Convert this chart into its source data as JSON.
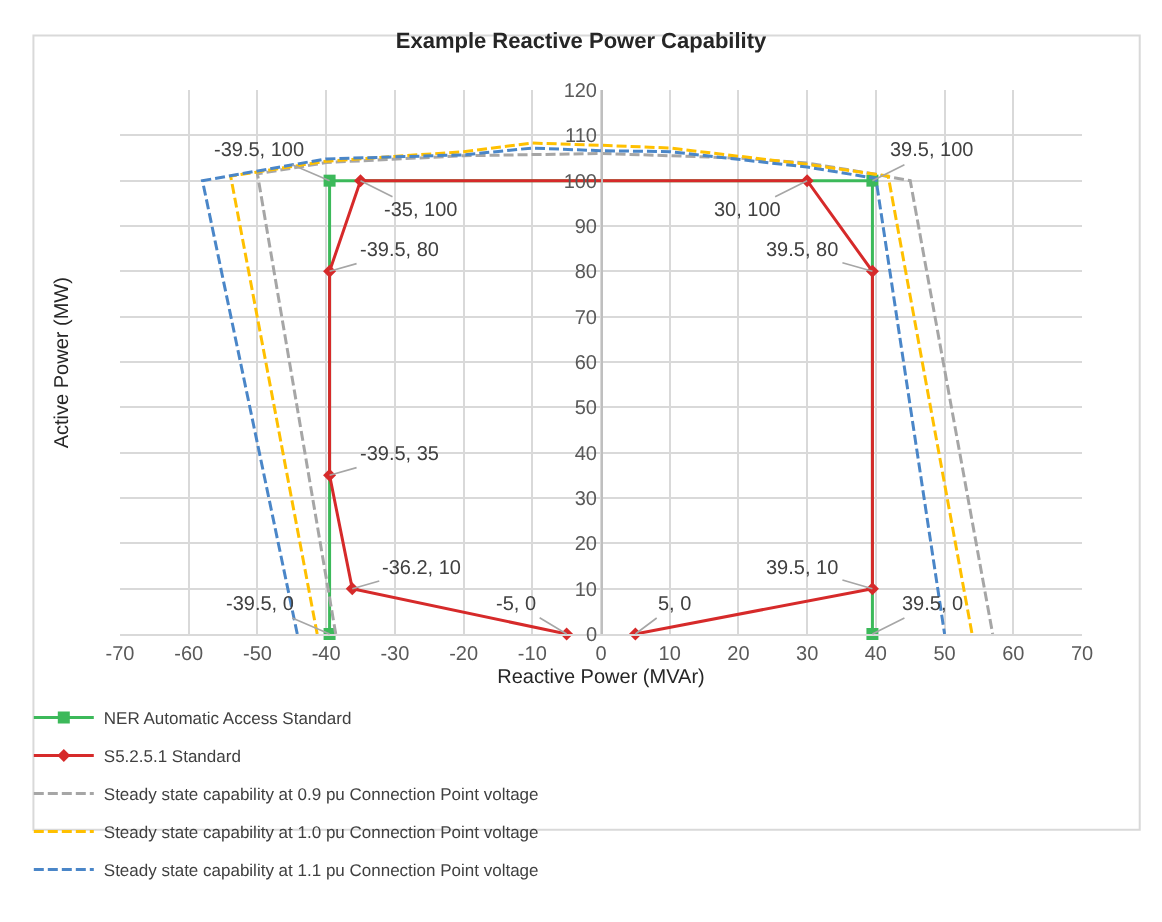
{
  "chart_data": {
    "type": "line",
    "title": "Example Reactive Power Capability",
    "xlabel": "Reactive Power (MVAr)",
    "ylabel": "Active Power (MW)",
    "xlim": [
      -70,
      70
    ],
    "xticks": [
      -70,
      -60,
      -50,
      -40,
      -30,
      -20,
      -10,
      0,
      10,
      20,
      30,
      40,
      50,
      60,
      70
    ],
    "ylim": [
      0,
      120
    ],
    "yticks": [
      0,
      10,
      20,
      30,
      40,
      50,
      60,
      70,
      80,
      90,
      100,
      110,
      120
    ],
    "grid": true,
    "legend": "bottom",
    "series": [
      {
        "name": "NER Automatic Access Standard",
        "color": "#3cb95a",
        "marker": "square",
        "line_style": "solid",
        "x": [
          -39.5,
          -39.5,
          39.5,
          39.5
        ],
        "values": [
          0,
          100,
          100,
          0
        ]
      },
      {
        "name": "S5.2.5.1 Standard",
        "color": "#d62a2a",
        "marker": "diamond",
        "line_style": "solid",
        "x": [
          -5,
          -36.2,
          -39.5,
          -39.5,
          -35,
          30,
          39.5,
          39.5,
          5
        ],
        "values": [
          0,
          10,
          35,
          80,
          100,
          100,
          80,
          10,
          0
        ]
      },
      {
        "name": "Steady state capability at 0.9 pu Connection Point voltage",
        "color": "#a6a6a6",
        "marker": "none",
        "line_style": "dashed",
        "x": [
          -38.6,
          -50,
          -40,
          -20,
          0,
          20,
          30,
          40,
          45,
          57
        ],
        "values": [
          0,
          101.5,
          104,
          105.5,
          106,
          105,
          103.9,
          101.4,
          100,
          0
        ]
      },
      {
        "name": "Steady state capability at 1.0 pu Connection Point voltage",
        "color": "#ffc000",
        "marker": "none",
        "line_style": "dashed",
        "x": [
          -41.3,
          -53.9,
          -40,
          -20,
          -10,
          0,
          10,
          30,
          41.8,
          54
        ],
        "values": [
          0,
          101,
          104.3,
          106.4,
          108.3,
          107.8,
          107.2,
          103.6,
          101,
          0
        ]
      },
      {
        "name": "Steady state capability at 1.1 pu Connection Point voltage",
        "color": "#4a86c8",
        "marker": "none",
        "line_style": "dashed",
        "x": [
          -44.2,
          -58,
          -40,
          -20,
          -10,
          0,
          10,
          30,
          40,
          50
        ],
        "values": [
          0,
          100,
          104.8,
          105.7,
          107.2,
          106.6,
          106.4,
          103,
          100.5,
          0
        ]
      }
    ],
    "annotations": [
      {
        "text": "-39.5, 100",
        "x": -39.5,
        "y": 100
      },
      {
        "text": "-35, 100",
        "x": -35,
        "y": 100
      },
      {
        "text": "-39.5, 80",
        "x": -39.5,
        "y": 80
      },
      {
        "text": "-39.5, 35",
        "x": -39.5,
        "y": 35
      },
      {
        "text": "-36.2, 10",
        "x": -36.2,
        "y": 10
      },
      {
        "text": "-39.5, 0",
        "x": -39.5,
        "y": 0
      },
      {
        "text": "-5, 0",
        "x": -5,
        "y": 0
      },
      {
        "text": "5, 0",
        "x": 5,
        "y": 0
      },
      {
        "text": "39.5, 10",
        "x": 39.5,
        "y": 10
      },
      {
        "text": "39.5, 0",
        "x": 39.5,
        "y": 0
      },
      {
        "text": "39.5, 80",
        "x": 39.5,
        "y": 80
      },
      {
        "text": "30, 100",
        "x": 30,
        "y": 100
      },
      {
        "text": "39.5, 100",
        "x": 39.5,
        "y": 100
      }
    ]
  }
}
